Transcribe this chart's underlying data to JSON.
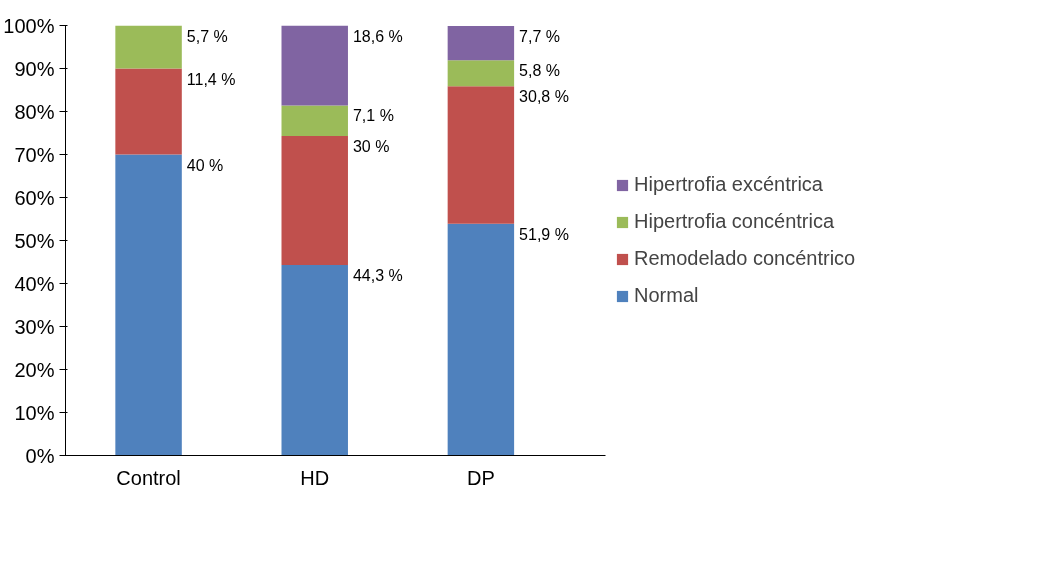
{
  "chart_data": {
    "type": "bar",
    "stacked": true,
    "categories": [
      "Control",
      "HD",
      "DP"
    ],
    "series": [
      {
        "name": "Normal",
        "color": "#4f81bd",
        "values": [
          70,
          44.3,
          53.9
        ]
      },
      {
        "name": "Remodelado concéntrico",
        "color": "#c0504d",
        "values": [
          20,
          30,
          32
        ]
      },
      {
        "name": "Hipertrofia concéntrica",
        "color": "#9bbb59",
        "values": [
          10,
          7.1,
          6
        ]
      },
      {
        "name": "Hipertrofia excéntrica",
        "color": "#8064a2",
        "values": [
          null,
          18.6,
          8
        ]
      }
    ],
    "annotations": [
      {
        "text": "40 %",
        "x": "Control",
        "y": 70
      },
      {
        "text": "11,4 %",
        "x": "Control",
        "y": 90
      },
      {
        "text": "5,7 %",
        "x": "Control",
        "y": 100
      },
      {
        "text": "44,3 %",
        "x": "HD",
        "y": 44.3
      },
      {
        "text": "30 %",
        "x": "HD",
        "y": 74.3
      },
      {
        "text": "7,1 %",
        "x": "HD",
        "y": 81.4
      },
      {
        "text": "18,6 %",
        "x": "HD",
        "y": 100
      },
      {
        "text": "51,9 %",
        "x": "DP",
        "y": 53.9
      },
      {
        "text": "30,8 %",
        "x": "DP",
        "y": 85.9
      },
      {
        "text": "5,8 %",
        "x": "DP",
        "y": 91.9
      },
      {
        "text": "7,7 %",
        "x": "DP",
        "y": 99.9
      }
    ],
    "ylim": [
      0,
      100
    ],
    "yticks": [
      {
        "value": 0,
        "label": "0%"
      },
      {
        "value": 10,
        "label": "10%"
      },
      {
        "value": 20,
        "label": "20%"
      },
      {
        "value": 30,
        "label": "30%"
      },
      {
        "value": 40,
        "label": "40%"
      },
      {
        "value": 50,
        "label": "50%"
      },
      {
        "value": 60,
        "label": "60%"
      },
      {
        "value": 70,
        "label": "70%"
      },
      {
        "value": 80,
        "label": "80%"
      },
      {
        "value": 90,
        "label": "90%"
      },
      {
        "value": 100,
        "label": "100%"
      }
    ],
    "grid": false,
    "legend": "right"
  }
}
